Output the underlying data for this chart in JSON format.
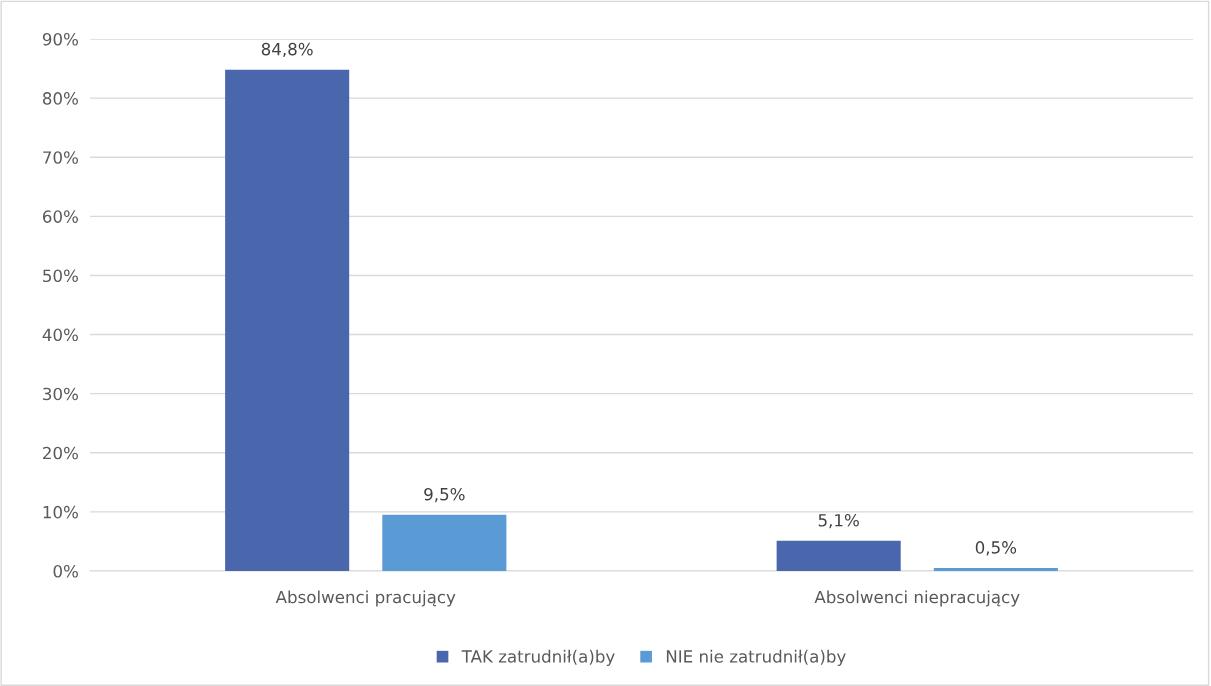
{
  "chart_data": {
    "type": "bar",
    "categories": [
      "Absolwenci pracujący",
      "Absolwenci niepracujący"
    ],
    "series": [
      {
        "name": "TAK zatrudnił(a)by",
        "color": "#4a67ae",
        "values": [
          84.8,
          5.1
        ],
        "value_labels": [
          "84,8%",
          "5,1%"
        ]
      },
      {
        "name": "NIE nie zatrudnił(a)by",
        "color": "#5b9bd5",
        "values": [
          9.5,
          0.5
        ],
        "value_labels": [
          "9,5%",
          "0,5%"
        ]
      }
    ],
    "ylim": [
      0,
      90
    ],
    "yticks": [
      {
        "value": 0,
        "label": "0%"
      },
      {
        "value": 10,
        "label": "10%"
      },
      {
        "value": 20,
        "label": "20%"
      },
      {
        "value": 30,
        "label": "30%"
      },
      {
        "value": 40,
        "label": "40%"
      },
      {
        "value": 50,
        "label": "50%"
      },
      {
        "value": 60,
        "label": "60%"
      },
      {
        "value": 70,
        "label": "70%"
      },
      {
        "value": 80,
        "label": "80%"
      },
      {
        "value": 90,
        "label": "90%"
      }
    ],
    "grid": "y",
    "legend": "bottom"
  }
}
